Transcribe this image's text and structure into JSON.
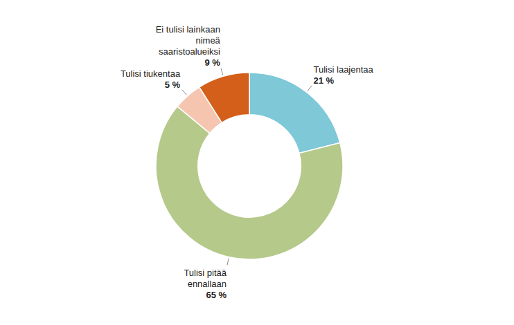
{
  "chart_data": {
    "type": "donut",
    "categories": [
      "Tulisi laajentaa",
      "Tulisi pitää\nennallaan",
      "Tulisi tiukentaa",
      "Ei tulisi lainkaan\nnimeä\nsaaristoalueiksi"
    ],
    "values": [
      21,
      65,
      5,
      9
    ],
    "value_labels": [
      "21 %",
      "65 %",
      "5 %",
      "9 %"
    ],
    "colors": [
      "#7ec8d8",
      "#b5c98a",
      "#f5c5b0",
      "#d45f1a"
    ],
    "data_labels": true
  }
}
